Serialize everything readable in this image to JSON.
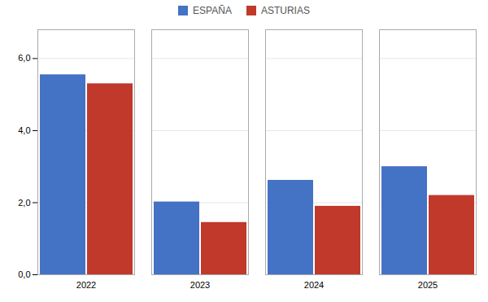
{
  "chart_data": {
    "type": "bar",
    "categories": [
      "2022",
      "2023",
      "2024",
      "2025"
    ],
    "series": [
      {
        "name": "ESPAÑA",
        "color": "#4472C4",
        "values": [
          5.55,
          2.02,
          2.62,
          3.0
        ]
      },
      {
        "name": "ASTURIAS",
        "color": "#C0392B",
        "values": [
          5.3,
          1.45,
          1.9,
          2.2
        ]
      }
    ],
    "ylim": [
      0,
      6.8
    ],
    "yticks": [
      {
        "value": 0.0,
        "label": "0,0"
      },
      {
        "value": 2.0,
        "label": "2,0"
      },
      {
        "value": 4.0,
        "label": "4,0"
      },
      {
        "value": 6.0,
        "label": "6,0"
      }
    ],
    "grid": true,
    "legend": "top"
  }
}
